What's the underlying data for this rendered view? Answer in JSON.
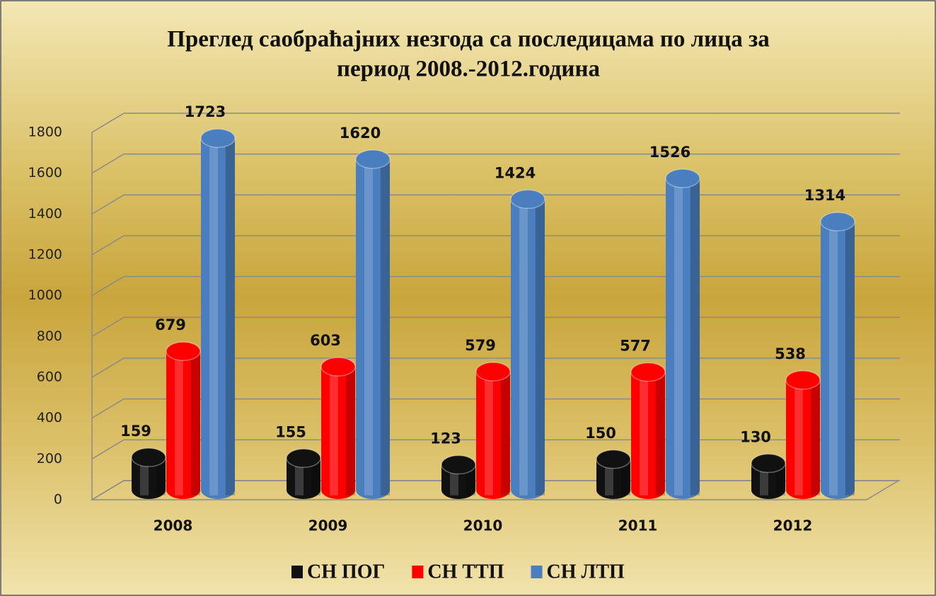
{
  "chart_data": {
    "type": "bar3d",
    "title": [
      "Преглед саобраћајних незгода са последицама по лица  за",
      "период 2008.-2012.година"
    ],
    "categories": [
      "2008",
      "2009",
      "2010",
      "2011",
      "2012"
    ],
    "series": [
      {
        "name": "СН ПОГ",
        "color": "#111111",
        "values": [
          159,
          155,
          123,
          150,
          130
        ]
      },
      {
        "name": "СН ТТП",
        "color": "#ff0000",
        "values": [
          679,
          603,
          579,
          577,
          538
        ]
      },
      {
        "name": "СН ЛТП",
        "color": "#4a7ebf",
        "values": [
          1723,
          1620,
          1424,
          1526,
          1314
        ]
      }
    ],
    "ylim": [
      0,
      1800
    ],
    "yticks": [
      0,
      200,
      400,
      600,
      800,
      1000,
      1200,
      1400,
      1600,
      1800
    ],
    "grid": true,
    "legend": "bottom"
  }
}
